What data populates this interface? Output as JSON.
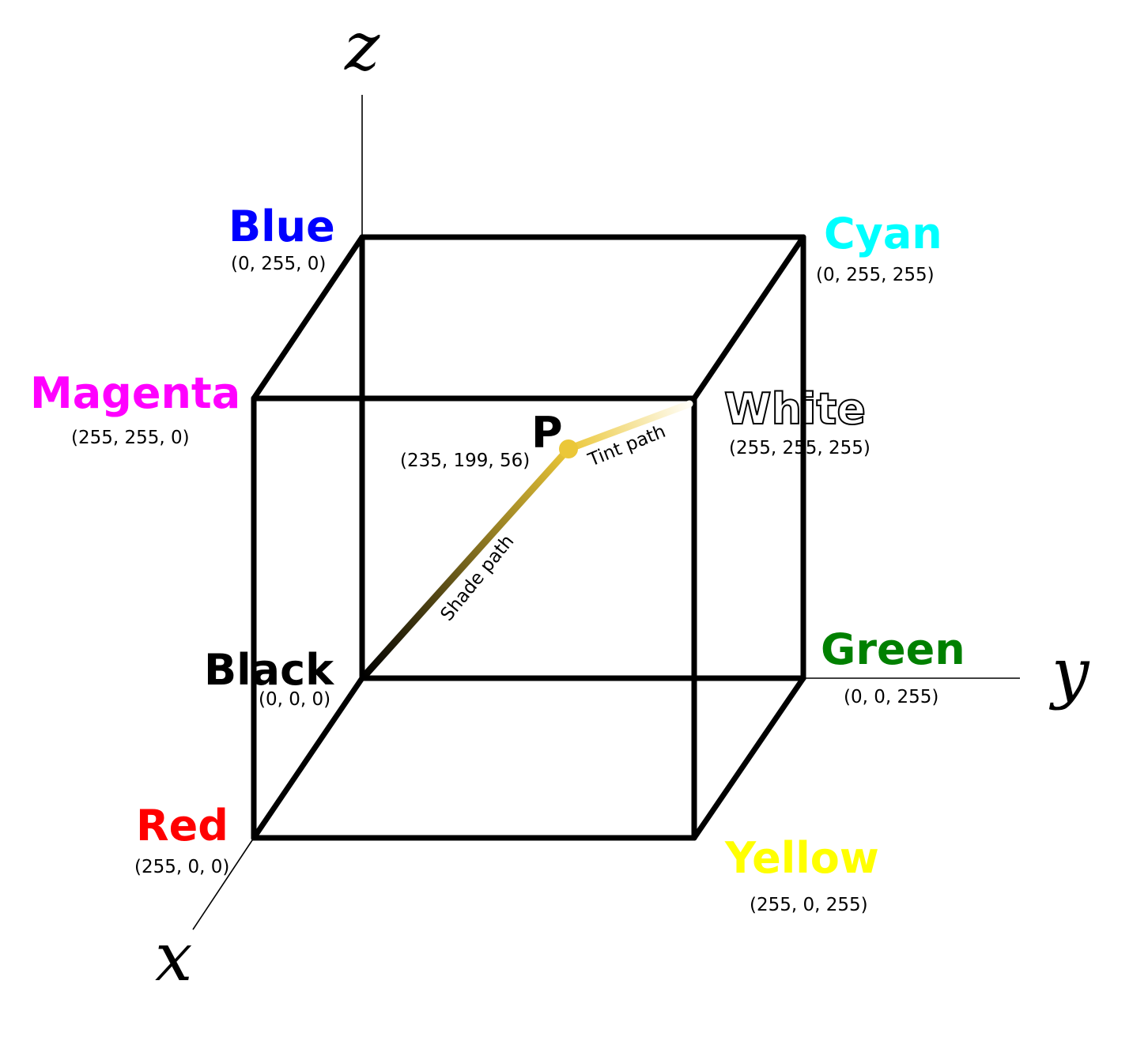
{
  "axes": {
    "x": "x",
    "y": "y",
    "z": "z"
  },
  "vertices": {
    "blue": {
      "name": "Blue",
      "coords": "(0, 255, 0)",
      "color": "#0000ff"
    },
    "cyan": {
      "name": "Cyan",
      "coords": "(0, 255, 255)",
      "color": "#00ffff"
    },
    "magenta": {
      "name": "Magenta",
      "coords": "(255, 255, 0)",
      "color": "#ff00ff"
    },
    "white": {
      "name": "White",
      "coords": "(255, 255, 255)",
      "color": "#ffffff"
    },
    "black": {
      "name": "Black",
      "coords": "(0, 0, 0)",
      "color": "#000000"
    },
    "green": {
      "name": "Green",
      "coords": "(0, 0, 255)",
      "color": "#008000"
    },
    "red": {
      "name": "Red",
      "coords": "(255, 0, 0)",
      "color": "#ff0000"
    },
    "yellow": {
      "name": "Yellow",
      "coords": "(255, 0, 255)",
      "color": "#ffff00"
    }
  },
  "point": {
    "name": "P",
    "coords": "(235, 199, 56)",
    "color": "#ebc738"
  },
  "paths": {
    "shade": "Shade path",
    "tint": "Tint path"
  }
}
